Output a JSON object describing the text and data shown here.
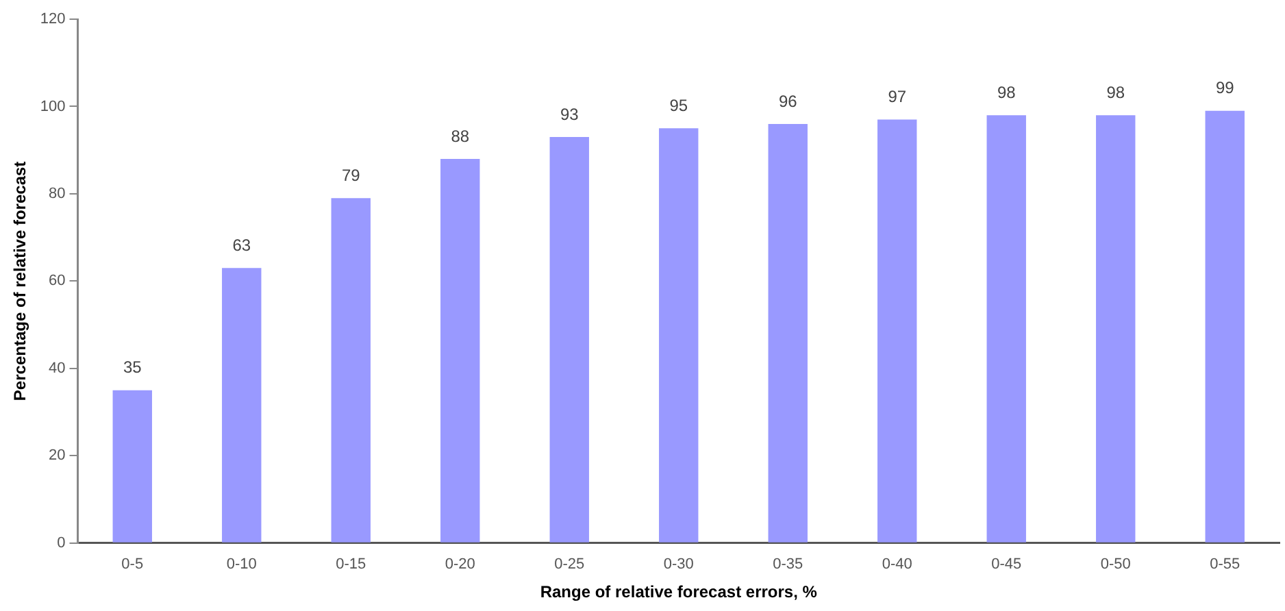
{
  "chart_data": {
    "type": "bar",
    "xlabel": "Range of relative forecast errors, %",
    "ylabel": "Percentage of relative forecast",
    "categories": [
      "0-5",
      "0-10",
      "0-15",
      "0-20",
      "0-25",
      "0-30",
      "0-35",
      "0-40",
      "0-45",
      "0-50",
      "0-55"
    ],
    "values": [
      35,
      63,
      79,
      88,
      93,
      95,
      96,
      97,
      98,
      98,
      99
    ],
    "color": "#9999ff",
    "ylim": [
      0,
      120
    ],
    "yticks": [
      0,
      20,
      40,
      60,
      80,
      100,
      120
    ],
    "grid": false,
    "legend": false,
    "data_labels": true
  }
}
